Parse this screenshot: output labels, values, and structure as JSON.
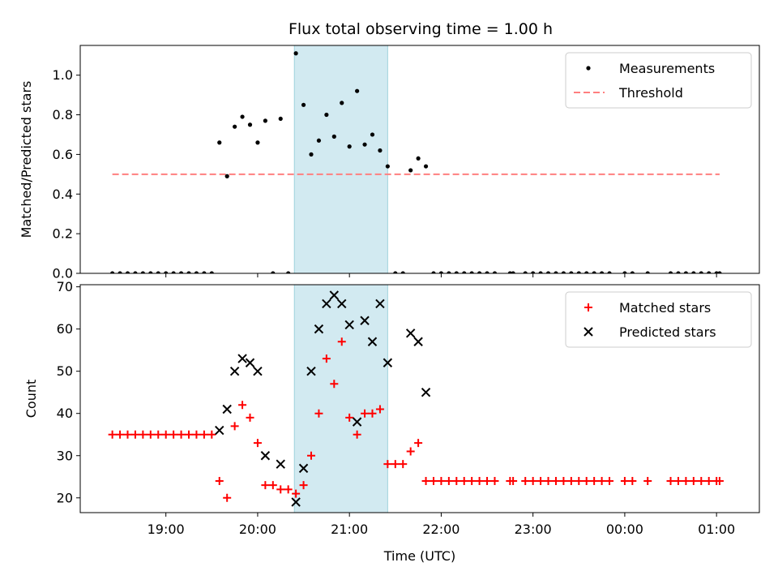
{
  "title": "Flux total observing time = 1.00 h",
  "colors": {
    "measurement": "#000000",
    "threshold": "#ff7f7f",
    "matched": "#ff0000",
    "predicted": "#000000",
    "highlight": "#add8e6"
  },
  "chart_data": [
    {
      "type": "scatter",
      "ylabel": "Matched/Predicted stars",
      "xlabel": "",
      "ylim": [
        0,
        1.15
      ],
      "yticks": [
        0.0,
        0.2,
        0.4,
        0.6,
        0.8,
        1.0
      ],
      "ytick_labels": [
        "0.0",
        "0.2",
        "0.4",
        "0.6",
        "0.8",
        "1.0"
      ],
      "legend": {
        "position": "top-right",
        "entries": [
          "Measurements",
          "Threshold"
        ]
      },
      "threshold": {
        "name": "Threshold",
        "value": 0.5,
        "x_start": "18:25",
        "x_end": "01:02"
      },
      "highlight_span": [
        "20:24",
        "21:25"
      ],
      "series": [
        {
          "name": "Measurements",
          "marker": "dot",
          "points": [
            [
              "18:25",
              0
            ],
            [
              "18:30",
              0
            ],
            [
              "18:35",
              0
            ],
            [
              "18:40",
              0
            ],
            [
              "18:45",
              0
            ],
            [
              "18:50",
              0
            ],
            [
              "18:55",
              0
            ],
            [
              "19:00",
              0
            ],
            [
              "19:05",
              0
            ],
            [
              "19:10",
              0
            ],
            [
              "19:15",
              0
            ],
            [
              "19:20",
              0
            ],
            [
              "19:25",
              0
            ],
            [
              "19:30",
              0
            ],
            [
              "19:35",
              0.66
            ],
            [
              "19:40",
              0.49
            ],
            [
              "19:45",
              0.74
            ],
            [
              "19:50",
              0.79
            ],
            [
              "19:55",
              0.75
            ],
            [
              "20:00",
              0.66
            ],
            [
              "20:05",
              0.77
            ],
            [
              "20:10",
              0
            ],
            [
              "20:15",
              0.78
            ],
            [
              "20:20",
              0
            ],
            [
              "20:25",
              1.11
            ],
            [
              "20:30",
              0.85
            ],
            [
              "20:35",
              0.6
            ],
            [
              "20:40",
              0.67
            ],
            [
              "20:45",
              0.8
            ],
            [
              "20:50",
              0.69
            ],
            [
              "20:55",
              0.86
            ],
            [
              "21:00",
              0.64
            ],
            [
              "21:05",
              0.92
            ],
            [
              "21:10",
              0.65
            ],
            [
              "21:15",
              0.7
            ],
            [
              "21:20",
              0.62
            ],
            [
              "21:25",
              0.54
            ],
            [
              "21:30",
              0
            ],
            [
              "21:35",
              0
            ],
            [
              "21:40",
              0.52
            ],
            [
              "21:45",
              0.58
            ],
            [
              "21:50",
              0.54
            ],
            [
              "21:55",
              0
            ],
            [
              "22:00",
              0
            ],
            [
              "22:05",
              0
            ],
            [
              "22:10",
              0
            ],
            [
              "22:15",
              0
            ],
            [
              "22:20",
              0
            ],
            [
              "22:25",
              0
            ],
            [
              "22:30",
              0
            ],
            [
              "22:35",
              0
            ],
            [
              "22:45",
              0
            ],
            [
              "22:47",
              0
            ],
            [
              "22:55",
              0
            ],
            [
              "23:00",
              0
            ],
            [
              "23:05",
              0
            ],
            [
              "23:10",
              0
            ],
            [
              "23:15",
              0
            ],
            [
              "23:20",
              0
            ],
            [
              "23:25",
              0
            ],
            [
              "23:30",
              0
            ],
            [
              "23:35",
              0
            ],
            [
              "23:40",
              0
            ],
            [
              "23:45",
              0
            ],
            [
              "23:50",
              0
            ],
            [
              "00:00",
              0
            ],
            [
              "00:05",
              0
            ],
            [
              "00:15",
              0
            ],
            [
              "00:30",
              0
            ],
            [
              "00:35",
              0
            ],
            [
              "00:40",
              0
            ],
            [
              "00:45",
              0
            ],
            [
              "00:50",
              0
            ],
            [
              "00:55",
              0
            ],
            [
              "01:00",
              0
            ],
            [
              "01:02",
              0
            ]
          ]
        }
      ]
    },
    {
      "type": "scatter",
      "ylabel": "Count",
      "xlabel": "Time (UTC)",
      "ylim": [
        16.5,
        70.5
      ],
      "yticks": [
        20,
        30,
        40,
        50,
        60,
        70
      ],
      "ytick_labels": [
        "20",
        "30",
        "40",
        "50",
        "60",
        "70"
      ],
      "xticks": [
        "19:00",
        "20:00",
        "21:00",
        "22:00",
        "23:00",
        "00:00",
        "01:00"
      ],
      "x_range": [
        "18:04",
        "01:28"
      ],
      "legend": {
        "position": "top-right",
        "entries": [
          "Matched stars",
          "Predicted stars"
        ]
      },
      "highlight_span": [
        "20:24",
        "21:25"
      ],
      "series": [
        {
          "name": "Matched stars",
          "marker": "plus",
          "points": [
            [
              "18:25",
              35
            ],
            [
              "18:30",
              35
            ],
            [
              "18:35",
              35
            ],
            [
              "18:40",
              35
            ],
            [
              "18:45",
              35
            ],
            [
              "18:50",
              35
            ],
            [
              "18:55",
              35
            ],
            [
              "19:00",
              35
            ],
            [
              "19:05",
              35
            ],
            [
              "19:10",
              35
            ],
            [
              "19:15",
              35
            ],
            [
              "19:20",
              35
            ],
            [
              "19:25",
              35
            ],
            [
              "19:30",
              35
            ],
            [
              "19:35",
              24
            ],
            [
              "19:40",
              20
            ],
            [
              "19:45",
              37
            ],
            [
              "19:50",
              42
            ],
            [
              "19:55",
              39
            ],
            [
              "20:00",
              33
            ],
            [
              "20:05",
              23
            ],
            [
              "20:10",
              23
            ],
            [
              "20:15",
              22
            ],
            [
              "20:20",
              22
            ],
            [
              "20:25",
              21
            ],
            [
              "20:30",
              23
            ],
            [
              "20:35",
              30
            ],
            [
              "20:40",
              40
            ],
            [
              "20:45",
              53
            ],
            [
              "20:50",
              47
            ],
            [
              "20:55",
              57
            ],
            [
              "21:00",
              39
            ],
            [
              "21:05",
              35
            ],
            [
              "21:10",
              40
            ],
            [
              "21:15",
              40
            ],
            [
              "21:20",
              41
            ],
            [
              "21:25",
              28
            ],
            [
              "21:30",
              28
            ],
            [
              "21:35",
              28
            ],
            [
              "21:40",
              31
            ],
            [
              "21:45",
              33
            ],
            [
              "21:50",
              24
            ],
            [
              "21:55",
              24
            ],
            [
              "22:00",
              24
            ],
            [
              "22:05",
              24
            ],
            [
              "22:10",
              24
            ],
            [
              "22:15",
              24
            ],
            [
              "22:20",
              24
            ],
            [
              "22:25",
              24
            ],
            [
              "22:30",
              24
            ],
            [
              "22:35",
              24
            ],
            [
              "22:45",
              24
            ],
            [
              "22:47",
              24
            ],
            [
              "22:55",
              24
            ],
            [
              "23:00",
              24
            ],
            [
              "23:05",
              24
            ],
            [
              "23:10",
              24
            ],
            [
              "23:15",
              24
            ],
            [
              "23:20",
              24
            ],
            [
              "23:25",
              24
            ],
            [
              "23:30",
              24
            ],
            [
              "23:35",
              24
            ],
            [
              "23:40",
              24
            ],
            [
              "23:45",
              24
            ],
            [
              "23:50",
              24
            ],
            [
              "00:00",
              24
            ],
            [
              "00:05",
              24
            ],
            [
              "00:15",
              24
            ],
            [
              "00:30",
              24
            ],
            [
              "00:35",
              24
            ],
            [
              "00:40",
              24
            ],
            [
              "00:45",
              24
            ],
            [
              "00:50",
              24
            ],
            [
              "00:55",
              24
            ],
            [
              "01:00",
              24
            ],
            [
              "01:02",
              24
            ]
          ]
        },
        {
          "name": "Predicted stars",
          "marker": "x",
          "points": [
            [
              "19:35",
              36
            ],
            [
              "19:40",
              41
            ],
            [
              "19:45",
              50
            ],
            [
              "19:50",
              53
            ],
            [
              "19:55",
              52
            ],
            [
              "20:00",
              50
            ],
            [
              "20:05",
              30
            ],
            [
              "20:15",
              28
            ],
            [
              "20:25",
              19
            ],
            [
              "20:30",
              27
            ],
            [
              "20:35",
              50
            ],
            [
              "20:40",
              60
            ],
            [
              "20:45",
              66
            ],
            [
              "20:50",
              68
            ],
            [
              "20:55",
              66
            ],
            [
              "21:00",
              61
            ],
            [
              "21:05",
              38
            ],
            [
              "21:10",
              62
            ],
            [
              "21:15",
              57
            ],
            [
              "21:20",
              66
            ],
            [
              "21:25",
              52
            ],
            [
              "21:40",
              59
            ],
            [
              "21:45",
              57
            ],
            [
              "21:50",
              45
            ]
          ]
        }
      ]
    }
  ]
}
